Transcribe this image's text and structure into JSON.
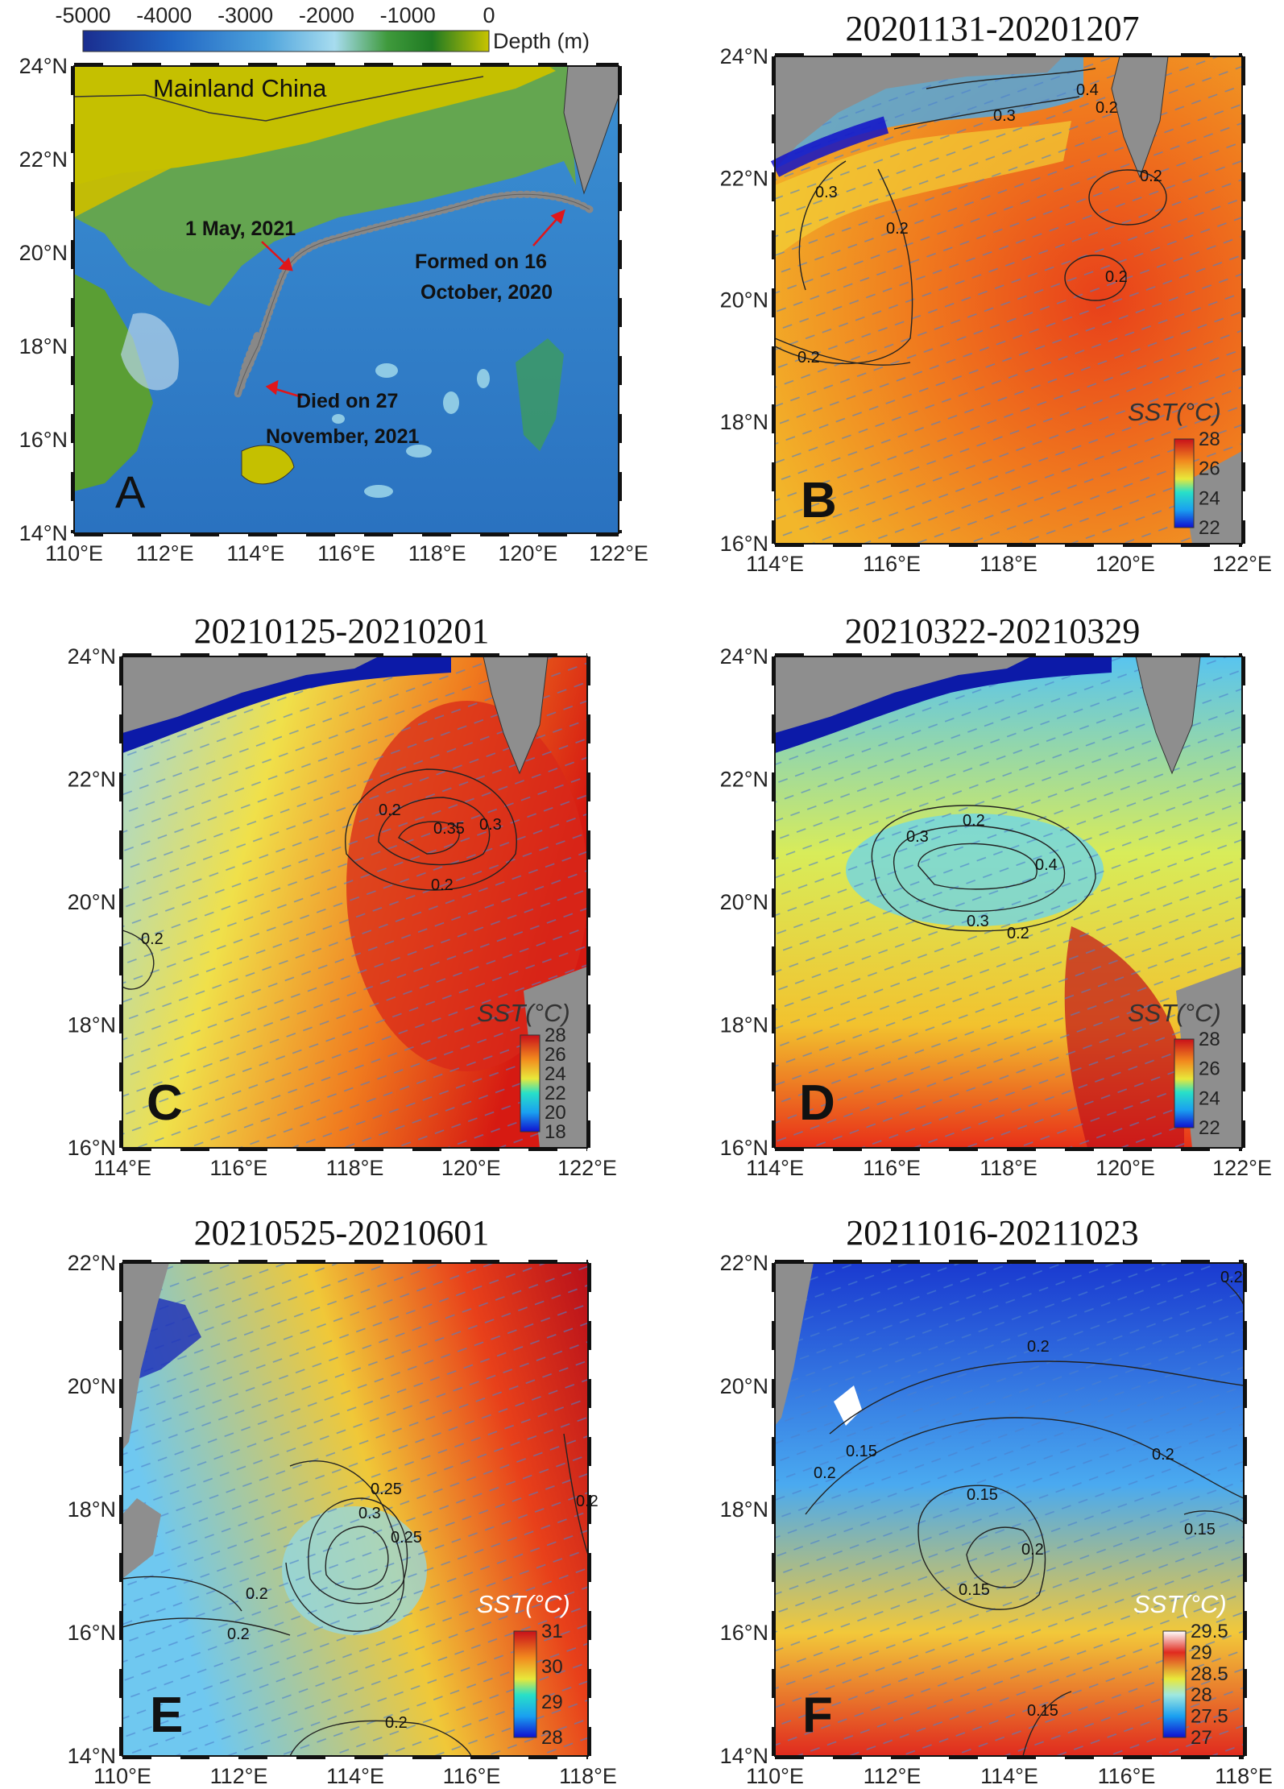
{
  "depth_bar": {
    "ticks": [
      "-5000",
      "-4000",
      "-3000",
      "-2000",
      "-1000",
      "0"
    ],
    "label": "Depth (m)",
    "colors": [
      "#1a2d8f",
      "#2166c4",
      "#4ea3dc",
      "#a7dcef",
      "#3f9a3c",
      "#1f7a22",
      "#c8c400"
    ]
  },
  "sst_label": "SST(°C)",
  "panels": [
    {
      "id": "A",
      "title": "",
      "lat_labels": [
        "24°N",
        "22°N",
        "20°N",
        "18°N",
        "16°N",
        "14°N"
      ],
      "lon_labels": [
        "110°E",
        "112°E",
        "114°E",
        "116°E",
        "118°E",
        "120°E",
        "122°E"
      ],
      "annotations": [
        "Mainland China",
        "1 May, 2021",
        "Formed on 16",
        "October, 2020",
        "Died on 27",
        "November, 2021"
      ],
      "colorbar": []
    },
    {
      "id": "B",
      "title": "20201131-20201207",
      "lat_labels": [
        "24°N",
        "22°N",
        "20°N",
        "18°N",
        "16°N"
      ],
      "lon_labels": [
        "114°E",
        "116°E",
        "118°E",
        "120°E",
        "122°E"
      ],
      "contours": [
        "0.4",
        "0.3",
        "0.2",
        "0.3",
        "0.2",
        "0.2",
        "0.2",
        "0.2"
      ],
      "colorbar": [
        "28",
        "26",
        "24",
        "22"
      ]
    },
    {
      "id": "C",
      "title": "20210125-20210201",
      "lat_labels": [
        "24°N",
        "22°N",
        "20°N",
        "18°N",
        "16°N"
      ],
      "lon_labels": [
        "114°E",
        "116°E",
        "118°E",
        "120°E",
        "122°E"
      ],
      "contours": [
        "0.2",
        "0.3",
        "0.35",
        "0.2",
        "0.2"
      ],
      "colorbar": [
        "28",
        "26",
        "24",
        "22",
        "20",
        "18"
      ]
    },
    {
      "id": "D",
      "title": "20210322-20210329",
      "lat_labels": [
        "24°N",
        "22°N",
        "20°N",
        "18°N",
        "16°N"
      ],
      "lon_labels": [
        "114°E",
        "116°E",
        "118°E",
        "120°E",
        "122°E"
      ],
      "contours": [
        "0.2",
        "0.3",
        "0.4",
        "0.3",
        "0.2"
      ],
      "colorbar": [
        "28",
        "26",
        "24",
        "22"
      ]
    },
    {
      "id": "E",
      "title": "20210525-20210601",
      "lat_labels": [
        "22°N",
        "20°N",
        "18°N",
        "16°N",
        "14°N"
      ],
      "lon_labels": [
        "110°E",
        "112°E",
        "114°E",
        "116°E",
        "118°E"
      ],
      "contours": [
        "0.25",
        "0.3",
        "0.25",
        "0.2",
        "0.2",
        "0.2",
        "0.2"
      ],
      "colorbar": [
        "31",
        "30",
        "29",
        "28"
      ]
    },
    {
      "id": "F",
      "title": "20211016-20211023",
      "lat_labels": [
        "22°N",
        "20°N",
        "18°N",
        "16°N",
        "14°N"
      ],
      "lon_labels": [
        "110°E",
        "112°E",
        "114°E",
        "116°E",
        "118°E"
      ],
      "contours": [
        "0.2",
        "0.2",
        "0.15",
        "0.2",
        "0.15",
        "0.2",
        "0.15",
        "0.15",
        "0.2",
        "0.15"
      ],
      "colorbar": [
        "29.5",
        "29",
        "28.5",
        "28",
        "27.5",
        "27"
      ]
    }
  ],
  "colors": {
    "land": "#8e8e8e",
    "track": "#8a8a8a",
    "arrow_red": "#e0161a",
    "vector_blue": "#5b8fd6",
    "contour": "#222222"
  }
}
